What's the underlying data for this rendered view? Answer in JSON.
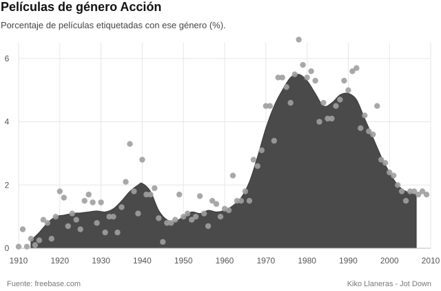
{
  "title": "Películas de género Acción",
  "subtitle": "Porcentaje de películas etiquetadas con ese género (%).",
  "footer": {
    "source": "Fuente: freebase.com",
    "credit": "Kiko Llaneras - Jot Down"
  },
  "colors": {
    "area": "#4a4a4a",
    "points": "#9e9e9e",
    "grid": "#e6e6e6",
    "axis": "#bbbbbb"
  },
  "chart_data": {
    "type": "area",
    "title": "Películas de género Acción",
    "subtitle": "Porcentaje de películas etiquetadas con ese género (%).",
    "xlabel": "",
    "ylabel": "",
    "xlim": [
      1910,
      2010
    ],
    "ylim": [
      0,
      6.5
    ],
    "x_ticks": [
      1910,
      1920,
      1930,
      1940,
      1950,
      1960,
      1970,
      1980,
      1990,
      2000,
      2010
    ],
    "y_ticks": [
      0,
      2,
      4,
      6
    ],
    "grid": true,
    "series": [
      {
        "kind": "area",
        "x": [
          1913,
          1915,
          1917,
          1919,
          1921,
          1923,
          1925,
          1927,
          1929,
          1931,
          1933,
          1935,
          1937,
          1939,
          1940,
          1942,
          1944,
          1946,
          1948,
          1950,
          1952,
          1954,
          1956,
          1958,
          1960,
          1962,
          1964,
          1966,
          1968,
          1970,
          1972,
          1974,
          1976,
          1978,
          1980,
          1982,
          1984,
          1986,
          1988,
          1990,
          1992,
          1994,
          1996,
          1998,
          2000,
          2002,
          2004,
          2006.5
        ],
        "y": [
          0.25,
          0.5,
          0.8,
          1.0,
          1.05,
          1.1,
          1.12,
          1.15,
          1.18,
          1.15,
          1.25,
          1.5,
          1.8,
          2.0,
          2.05,
          1.8,
          1.2,
          0.9,
          0.85,
          1.0,
          1.15,
          1.1,
          1.2,
          1.15,
          1.2,
          1.35,
          1.6,
          2.1,
          2.9,
          3.8,
          4.5,
          5.0,
          5.4,
          5.5,
          5.3,
          4.9,
          4.5,
          4.6,
          4.85,
          4.9,
          4.7,
          4.1,
          3.5,
          2.9,
          2.4,
          2.0,
          1.8,
          1.7
        ]
      },
      {
        "kind": "scatter",
        "x": [
          1910,
          1911,
          1912,
          1913,
          1914,
          1915,
          1916,
          1917,
          1918,
          1919,
          1920,
          1921,
          1922,
          1923,
          1924,
          1925,
          1926,
          1927,
          1928,
          1929,
          1930,
          1931,
          1932,
          1933,
          1934,
          1935,
          1936,
          1937,
          1938,
          1939,
          1940,
          1941,
          1942,
          1943,
          1944,
          1945,
          1946,
          1947,
          1948,
          1949,
          1950,
          1951,
          1952,
          1953,
          1954,
          1955,
          1956,
          1957,
          1958,
          1959,
          1960,
          1961,
          1962,
          1963,
          1964,
          1965,
          1966,
          1967,
          1968,
          1969,
          1970,
          1971,
          1972,
          1973,
          1974,
          1975,
          1976,
          1977,
          1978,
          1979,
          1980,
          1981,
          1982,
          1983,
          1984,
          1985,
          1986,
          1987,
          1988,
          1989,
          1990,
          1991,
          1992,
          1993,
          1994,
          1995,
          1996,
          1997,
          1998,
          1999,
          2000,
          2001,
          2002,
          2003,
          2004,
          2005,
          2006,
          2007,
          2008,
          2009
        ],
        "y": [
          0.05,
          0.6,
          0.05,
          0.3,
          0.1,
          0.25,
          0.9,
          0.8,
          0.3,
          1.0,
          1.8,
          1.6,
          0.7,
          1.1,
          0.9,
          0.6,
          1.5,
          1.7,
          1.45,
          0.8,
          1.45,
          0.5,
          1.0,
          1.0,
          0.5,
          1.3,
          2.1,
          3.3,
          1.8,
          1.1,
          2.8,
          1.7,
          1.7,
          1.9,
          0.95,
          0.2,
          0.8,
          0.8,
          0.9,
          1.7,
          1.0,
          1.1,
          0.9,
          1.0,
          1.65,
          1.1,
          0.7,
          1.5,
          1.4,
          1.0,
          1.25,
          1.2,
          2.3,
          1.5,
          1.5,
          1.8,
          1.5,
          2.8,
          2.6,
          3.1,
          4.5,
          4.5,
          3.4,
          5.4,
          5.4,
          5.1,
          4.6,
          5.5,
          6.6,
          5.8,
          5.4,
          5.6,
          5.3,
          4.0,
          4.6,
          4.1,
          4.1,
          4.5,
          4.7,
          5.3,
          5.0,
          5.6,
          5.7,
          3.8,
          4.2,
          3.7,
          3.6,
          4.5,
          2.8,
          2.7,
          2.4,
          2.3,
          2.0,
          1.8,
          1.5,
          1.8,
          1.8,
          1.7,
          1.8,
          1.7
        ]
      }
    ]
  }
}
